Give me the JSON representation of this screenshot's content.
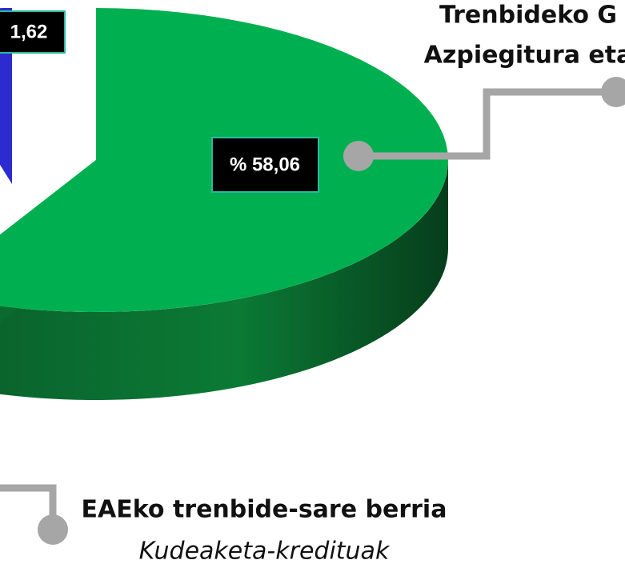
{
  "chart_data": {
    "type": "pie",
    "values": [
      1.62,
      58.06
    ],
    "value_labels": [
      "1,62",
      "% 58,06"
    ],
    "colors": [
      "#2b2bd0",
      "#00b050"
    ],
    "annotations": [
      "Trenbideko G",
      "Azpiegitura eta",
      "EAEko trenbide-sare berria",
      "Kudeaketa-kredituak"
    ]
  }
}
